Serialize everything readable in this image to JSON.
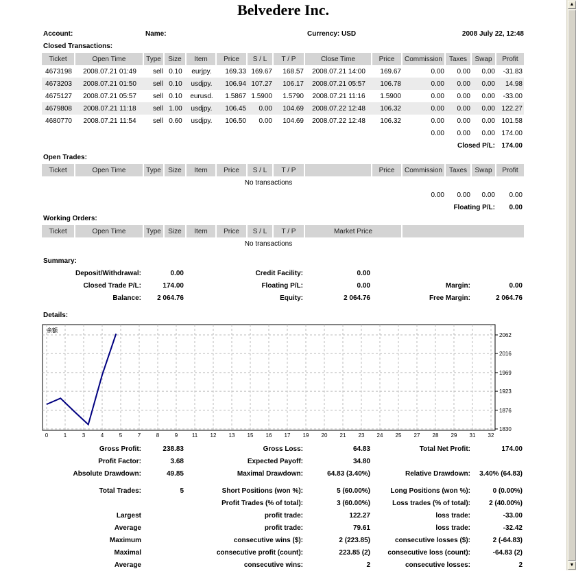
{
  "title": "Belvedere Inc.",
  "header": {
    "account_label": "Account:",
    "name_label": "Name:",
    "currency": "Currency: USD",
    "date": "2008 July 22, 12:48"
  },
  "closed": {
    "heading": "Closed Transactions:",
    "columns": [
      "Ticket",
      "Open Time",
      "Type",
      "Size",
      "Item",
      "Price",
      "S / L",
      "T / P",
      "Close Time",
      "Price",
      "Commission",
      "Taxes",
      "Swap",
      "Profit"
    ],
    "rows": [
      [
        "4673198",
        "2008.07.21 01:49",
        "sell",
        "0.10",
        "eurjpy.",
        "169.33",
        "169.67",
        "168.57",
        "2008.07.21 14:00",
        "169.67",
        "0.00",
        "0.00",
        "0.00",
        "-31.83"
      ],
      [
        "4673203",
        "2008.07.21 01:50",
        "sell",
        "0.10",
        "usdjpy.",
        "106.94",
        "107.27",
        "106.17",
        "2008.07.21 05:57",
        "106.78",
        "0.00",
        "0.00",
        "0.00",
        "14.98"
      ],
      [
        "4675127",
        "2008.07.21 05:57",
        "sell",
        "0.10",
        "eurusd.",
        "1.5867",
        "1.5900",
        "1.5790",
        "2008.07.21 11:16",
        "1.5900",
        "0.00",
        "0.00",
        "0.00",
        "-33.00"
      ],
      [
        "4679808",
        "2008.07.21 11:18",
        "sell",
        "1.00",
        "usdjpy.",
        "106.45",
        "0.00",
        "104.69",
        "2008.07.22 12:48",
        "106.32",
        "0.00",
        "0.00",
        "0.00",
        "122.27"
      ],
      [
        "4680770",
        "2008.07.21 11:54",
        "sell",
        "0.60",
        "usdjpy.",
        "106.50",
        "0.00",
        "104.69",
        "2008.07.22 12:48",
        "106.32",
        "0.00",
        "0.00",
        "0.00",
        "101.58"
      ]
    ],
    "totals": [
      "0.00",
      "0.00",
      "0.00",
      "174.00"
    ],
    "pl_label": "Closed P/L:",
    "pl_value": "174.00"
  },
  "open": {
    "heading": "Open Trades:",
    "columns": [
      "Ticket",
      "Open Time",
      "Type",
      "Size",
      "Item",
      "Price",
      "S / L",
      "T / P",
      "",
      "Price",
      "Commission",
      "Taxes",
      "Swap",
      "Profit"
    ],
    "empty": "No transactions",
    "totals": [
      "0.00",
      "0.00",
      "0.00",
      "0.00"
    ],
    "pl_label": "Floating P/L:",
    "pl_value": "0.00"
  },
  "working": {
    "heading": "Working Orders:",
    "columns": [
      "Ticket",
      "Open Time",
      "Type",
      "Size",
      "Item",
      "Price",
      "S / L",
      "T / P",
      "Market Price",
      ""
    ],
    "empty": "No transactions"
  },
  "summary": {
    "heading": "Summary:",
    "rows": [
      [
        "Deposit/Withdrawal:",
        "0.00",
        "Credit Facility:",
        "0.00",
        "",
        ""
      ],
      [
        "Closed Trade P/L:",
        "174.00",
        "Floating P/L:",
        "0.00",
        "Margin:",
        "0.00"
      ],
      [
        "Balance:",
        "2 064.76",
        "Equity:",
        "2 064.76",
        "Free Margin:",
        "2 064.76"
      ]
    ]
  },
  "details": {
    "heading": "Details:",
    "rows": [
      [
        "Gross Profit:",
        "238.83",
        "Gross Loss:",
        "64.83",
        "Total Net Profit:",
        "174.00"
      ],
      [
        "Profit Factor:",
        "3.68",
        "Expected Payoff:",
        "34.80",
        "",
        ""
      ],
      [
        "Absolute Drawdown:",
        "49.85",
        "Maximal Drawdown:",
        "64.83 (3.40%)",
        "Relative Drawdown:",
        "3.40% (64.83)"
      ],
      [
        "Total Trades:",
        "5",
        "Short Positions (won %):",
        "5 (60.00%)",
        "Long Positions (won %):",
        "0 (0.00%)"
      ],
      [
        "",
        "",
        "Profit Trades (% of total):",
        "3 (60.00%)",
        "Loss trades (% of total):",
        "2 (40.00%)"
      ],
      [
        "Largest",
        "",
        "profit trade:",
        "122.27",
        "loss trade:",
        "-33.00"
      ],
      [
        "Average",
        "",
        "profit trade:",
        "79.61",
        "loss trade:",
        "-32.42"
      ],
      [
        "Maximum",
        "",
        "consecutive wins ($):",
        "2 (223.85)",
        "consecutive losses ($):",
        "2 (-64.83)"
      ],
      [
        "Maximal",
        "",
        "consecutive profit (count):",
        "223.85 (2)",
        "consecutive loss (count):",
        "-64.83 (2)"
      ],
      [
        "Average",
        "",
        "consecutive wins:",
        "2",
        "consecutive losses:",
        "2"
      ]
    ]
  },
  "chart_data": {
    "type": "line",
    "title": "余额",
    "x": [
      0,
      1,
      2,
      3,
      4,
      5
    ],
    "values": [
      1890.76,
      1905.74,
      1872.74,
      1840.91,
      1963.18,
      2064.76
    ],
    "xlim": [
      0,
      32
    ],
    "x_ticks": [
      "0",
      "1",
      "3",
      "4",
      "5",
      "7",
      "8",
      "9",
      "11",
      "12",
      "13",
      "15",
      "16",
      "17",
      "19",
      "20",
      "21",
      "23",
      "24",
      "25",
      "27",
      "28",
      "29",
      "31",
      "32"
    ],
    "y_ticks": [
      "2062",
      "2016",
      "1969",
      "1923",
      "1876",
      "1830"
    ],
    "ylim": [
      1830,
      2062
    ],
    "grid": true,
    "line_color": "#000080"
  }
}
